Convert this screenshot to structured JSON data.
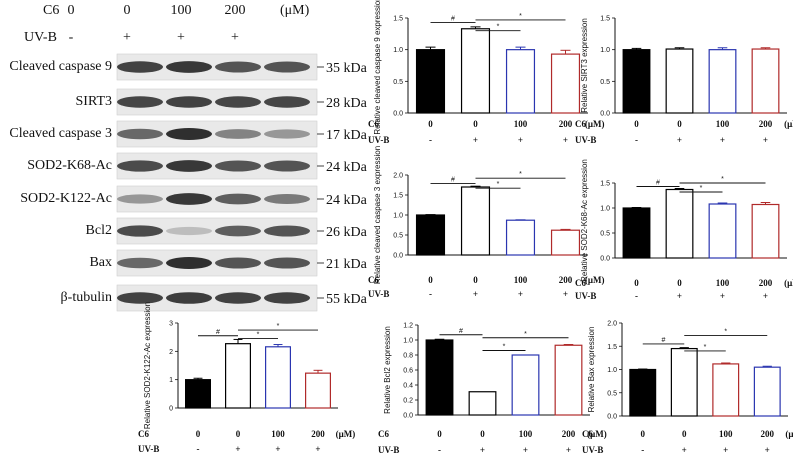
{
  "blot": {
    "header": {
      "c6_label": "C6",
      "c6_values": [
        "0",
        "0",
        "100",
        "200"
      ],
      "unit": "(μM)",
      "uvb_label": "UV-B",
      "uvb_values": [
        "-",
        "+",
        "+",
        "+"
      ]
    },
    "rows": [
      {
        "name": "Cleaved caspase 9",
        "kda": "35 kDa",
        "intensity": [
          0.9,
          0.95,
          0.8,
          0.8
        ]
      },
      {
        "name": "SIRT3",
        "kda": "28 kDa",
        "intensity": [
          0.88,
          0.9,
          0.88,
          0.88
        ]
      },
      {
        "name": "Cleaved caspase 3",
        "kda": "17 kDa",
        "intensity": [
          0.7,
          1.0,
          0.55,
          0.45
        ]
      },
      {
        "name": "SOD2-K68-Ac",
        "kda": "24 kDa",
        "intensity": [
          0.85,
          0.95,
          0.8,
          0.8
        ]
      },
      {
        "name": "SOD2-K122-Ac",
        "kda": "24 kDa",
        "intensity": [
          0.45,
          0.95,
          0.75,
          0.6
        ]
      },
      {
        "name": "Bcl2",
        "kda": "26 kDa",
        "intensity": [
          0.85,
          0.25,
          0.75,
          0.8
        ]
      },
      {
        "name": "Bax",
        "kda": "21 kDa",
        "intensity": [
          0.7,
          1.0,
          0.8,
          0.8
        ]
      },
      {
        "name": "β-tubulin",
        "kda": "55 kDa",
        "intensity": [
          0.9,
          0.92,
          0.9,
          0.9
        ]
      }
    ]
  },
  "chart_data": [
    {
      "id": "casp9",
      "type": "bar",
      "ylabel": "Relative cleaved caspase 9 expression",
      "ylim": [
        0,
        1.5
      ],
      "yticks": [
        0.0,
        0.5,
        1.0,
        1.5
      ],
      "tick_labels": [
        "0.0",
        "0.5",
        "1.0",
        "1.5"
      ],
      "categories": [
        "0",
        "0",
        "100",
        "200"
      ],
      "values": [
        1.0,
        1.33,
        1.0,
        0.93
      ],
      "errors": [
        0.04,
        0.03,
        0.04,
        0.06
      ],
      "colors": [
        "#000000",
        "#000000",
        "#2a35b0",
        "#b02a2a"
      ],
      "filled": [
        true,
        false,
        false,
        false
      ],
      "c6_label": "C6",
      "uvb_label": "UV-B",
      "c6_values": [
        "0",
        "0",
        "100",
        "200"
      ],
      "unit": "(μM)",
      "uvb_values": [
        "-",
        "+",
        "+",
        "+"
      ],
      "significance": [
        {
          "from": 0,
          "to": 1,
          "label": "#",
          "y": 1.43
        },
        {
          "from": 1,
          "to": 2,
          "label": "*",
          "y": 1.3
        },
        {
          "from": 1,
          "to": 3,
          "label": "*",
          "y": 1.47
        }
      ]
    },
    {
      "id": "sirt3",
      "type": "bar",
      "ylabel": "Relative SIRT3 expression",
      "ylim": [
        0,
        1.5
      ],
      "yticks": [
        0.0,
        0.5,
        1.0,
        1.5
      ],
      "tick_labels": [
        "0.0",
        "0.5",
        "1.0",
        "1.5"
      ],
      "categories": [
        "0",
        "0",
        "100",
        "200"
      ],
      "values": [
        1.0,
        1.01,
        1.0,
        1.01
      ],
      "errors": [
        0.02,
        0.02,
        0.03,
        0.02
      ],
      "colors": [
        "#000000",
        "#000000",
        "#2a35b0",
        "#b02a2a"
      ],
      "filled": [
        true,
        false,
        false,
        false
      ],
      "c6_label": "C6",
      "uvb_label": "UV-B",
      "c6_values": [
        "0",
        "0",
        "100",
        "200"
      ],
      "unit": "(μM)",
      "uvb_values": [
        "-",
        "+",
        "+",
        "+"
      ],
      "significance": []
    },
    {
      "id": "casp3",
      "type": "bar",
      "ylabel": "Relative cleaved caspase 3 expression",
      "ylim": [
        0,
        2.0
      ],
      "yticks": [
        0.0,
        0.5,
        1.0,
        1.5,
        2.0
      ],
      "tick_labels": [
        "0.0",
        "0.5",
        "1.0",
        "1.5",
        "2.0"
      ],
      "categories": [
        "0",
        "0",
        "100",
        "200"
      ],
      "values": [
        1.0,
        1.7,
        0.87,
        0.62
      ],
      "errors": [
        0.01,
        0.02,
        0.01,
        0.02
      ],
      "colors": [
        "#000000",
        "#000000",
        "#2a35b0",
        "#b02a2a"
      ],
      "filled": [
        true,
        false,
        false,
        false
      ],
      "c6_label": "C6",
      "uvb_label": "UV-B",
      "c6_values": [
        "0",
        "0",
        "100",
        "200"
      ],
      "unit": "(μM)",
      "uvb_values": [
        "-",
        "+",
        "+",
        "+"
      ],
      "significance": [
        {
          "from": 0,
          "to": 1,
          "label": "#",
          "y": 1.79
        },
        {
          "from": 1,
          "to": 2,
          "label": "*",
          "y": 1.67
        },
        {
          "from": 1,
          "to": 3,
          "label": "*",
          "y": 1.92
        }
      ]
    },
    {
      "id": "k68",
      "type": "bar",
      "ylabel": "Relative SOD2-K68-Ac expression",
      "ylim": [
        0,
        1.5
      ],
      "yticks": [
        0.0,
        0.5,
        1.0,
        1.5
      ],
      "tick_labels": [
        "0.0",
        "0.5",
        "1.0",
        "1.5"
      ],
      "categories": [
        "0",
        "0",
        "100",
        "200"
      ],
      "values": [
        1.0,
        1.37,
        1.08,
        1.07
      ],
      "errors": [
        0.01,
        0.02,
        0.02,
        0.04
      ],
      "colors": [
        "#000000",
        "#000000",
        "#2a35b0",
        "#b02a2a"
      ],
      "filled": [
        true,
        false,
        false,
        false
      ],
      "c6_label": "C6",
      "uvb_label": "UV-B",
      "c6_values": [
        "0",
        "0",
        "100",
        "200"
      ],
      "unit": "(μM)",
      "uvb_values": [
        "-",
        "+",
        "+",
        "+"
      ],
      "significance": [
        {
          "from": 0,
          "to": 1,
          "label": "#",
          "y": 1.43
        },
        {
          "from": 1,
          "to": 2,
          "label": "*",
          "y": 1.32
        },
        {
          "from": 1,
          "to": 3,
          "label": "*",
          "y": 1.5
        }
      ]
    },
    {
      "id": "k122",
      "type": "bar",
      "ylabel": "Relative SOD2-K122-Ac expression",
      "ylim": [
        0,
        3
      ],
      "yticks": [
        0,
        1,
        2,
        3
      ],
      "tick_labels": [
        "0",
        "1",
        "2",
        "3"
      ],
      "categories": [
        "0",
        "0",
        "100",
        "200"
      ],
      "values": [
        1.0,
        2.27,
        2.16,
        1.23
      ],
      "errors": [
        0.05,
        0.15,
        0.08,
        0.1
      ],
      "colors": [
        "#000000",
        "#000000",
        "#2a35b0",
        "#b02a2a"
      ],
      "filled": [
        true,
        false,
        false,
        false
      ],
      "c6_label": "C6",
      "uvb_label": "UV-B",
      "c6_values": [
        "0",
        "0",
        "100",
        "200"
      ],
      "unit": "(μM)",
      "uvb_values": [
        "-",
        "+",
        "+",
        "+"
      ],
      "significance": [
        {
          "from": 0,
          "to": 1,
          "label": "#",
          "y": 2.55
        },
        {
          "from": 1,
          "to": 2,
          "label": "*",
          "y": 2.45
        },
        {
          "from": 1,
          "to": 3,
          "label": "*",
          "y": 2.75
        }
      ]
    },
    {
      "id": "bcl2",
      "type": "bar",
      "ylabel": "Relative Bcl2 expression",
      "ylim": [
        0,
        1.2
      ],
      "yticks": [
        0.0,
        0.2,
        0.4,
        0.6,
        0.8,
        1.0,
        1.2
      ],
      "tick_labels": [
        "0.0",
        "0.2",
        "0.4",
        "0.6",
        "0.8",
        "1.0",
        "1.2"
      ],
      "categories": [
        "0",
        "0",
        "100",
        "200"
      ],
      "values": [
        1.0,
        0.31,
        0.8,
        0.93
      ],
      "errors": [
        0.01,
        0.0,
        0.0,
        0.01
      ],
      "colors": [
        "#000000",
        "#000000",
        "#2a35b0",
        "#b02a2a"
      ],
      "filled": [
        true,
        false,
        false,
        false
      ],
      "c6_label": "C6",
      "uvb_label": "UV-B",
      "c6_values": [
        "0",
        "0",
        "100",
        "200"
      ],
      "unit": "(μM)",
      "uvb_values": [
        "-",
        "+",
        "+",
        "+"
      ],
      "significance": [
        {
          "from": 0,
          "to": 1,
          "label": "#",
          "y": 1.07
        },
        {
          "from": 1,
          "to": 2,
          "label": "*",
          "y": 0.86
        },
        {
          "from": 1,
          "to": 3,
          "label": "*",
          "y": 1.03
        }
      ]
    },
    {
      "id": "bax",
      "type": "bar",
      "ylabel": "Relative Bax expression",
      "ylim": [
        0,
        2.0
      ],
      "yticks": [
        0.0,
        0.5,
        1.0,
        1.5,
        2.0
      ],
      "tick_labels": [
        "0.0",
        "0.5",
        "1.0",
        "1.5",
        "2.0"
      ],
      "categories": [
        "0",
        "0",
        "100",
        "200"
      ],
      "values": [
        1.0,
        1.45,
        1.12,
        1.05
      ],
      "errors": [
        0.01,
        0.02,
        0.02,
        0.02
      ],
      "colors": [
        "#000000",
        "#000000",
        "#b02a2a",
        "#2a35b0"
      ],
      "filled": [
        true,
        false,
        false,
        false
      ],
      "c6_label": "C6",
      "uvb_label": "UV-B",
      "c6_values": [
        "0",
        "0",
        "100",
        "200"
      ],
      "unit": "(μM)",
      "uvb_values": [
        "-",
        "+",
        "+",
        "+"
      ],
      "significance": [
        {
          "from": 0,
          "to": 1,
          "label": "#",
          "y": 1.55
        },
        {
          "from": 1,
          "to": 2,
          "label": "*",
          "y": 1.4
        },
        {
          "from": 1,
          "to": 3,
          "label": "*",
          "y": 1.73
        }
      ]
    }
  ]
}
